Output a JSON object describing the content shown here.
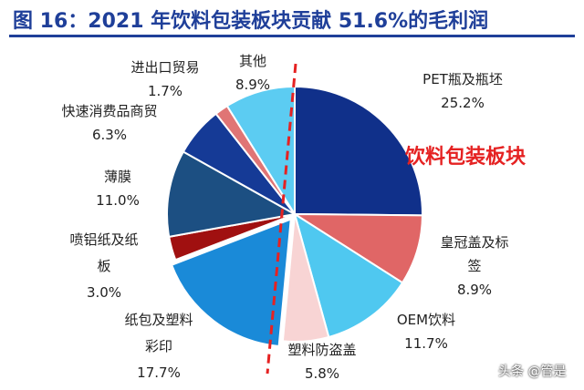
{
  "title": "图 16：2021 年饮料包装板块贡献 51.6%的毛利润",
  "highlight_label": "饮料包装板块",
  "watermark": "头条 @管是",
  "colors": {
    "title": "#1f3f99",
    "highlight": "#e52222",
    "divider": "#e52222"
  },
  "chart_data": {
    "type": "pie",
    "start_angle_deg": 0,
    "direction": "clockwise",
    "slices": [
      {
        "label_lines": [
          "PET瓶及瓶坯"
        ],
        "value": 25.2,
        "value_text": "25.2%",
        "color": "#10308a"
      },
      {
        "label_lines": [
          "皇冠盖及标",
          "签"
        ],
        "value": 8.9,
        "value_text": "8.9%",
        "color": "#e06666"
      },
      {
        "label_lines": [
          "OEM饮料"
        ],
        "value": 11.7,
        "value_text": "11.7%",
        "color": "#4fc8f0"
      },
      {
        "label_lines": [
          "塑料防盗盖"
        ],
        "value": 5.8,
        "value_text": "5.8%",
        "color": "#f8d4d4"
      },
      {
        "label_lines": [
          "纸包及塑料",
          "彩印"
        ],
        "value": 17.7,
        "value_text": "17.7%",
        "color": "#1a8ad8"
      },
      {
        "label_lines": [
          "喷铝纸及纸",
          "板"
        ],
        "value": 3.0,
        "value_text": "3.0%",
        "color": "#a01010"
      },
      {
        "label_lines": [
          "薄膜"
        ],
        "value": 11.0,
        "value_text": "11.0%",
        "color": "#1c4f82"
      },
      {
        "label_lines": [
          "快速消费品商贸"
        ],
        "value": 6.3,
        "value_text": "6.3%",
        "color": "#153a96"
      },
      {
        "label_lines": [
          "进出口贸易"
        ],
        "value": 1.7,
        "value_text": "1.7%",
        "color": "#e07575"
      },
      {
        "label_lines": [
          "其他"
        ],
        "value": 8.9,
        "value_text": "8.9%",
        "color": "#5cccf2"
      }
    ]
  }
}
